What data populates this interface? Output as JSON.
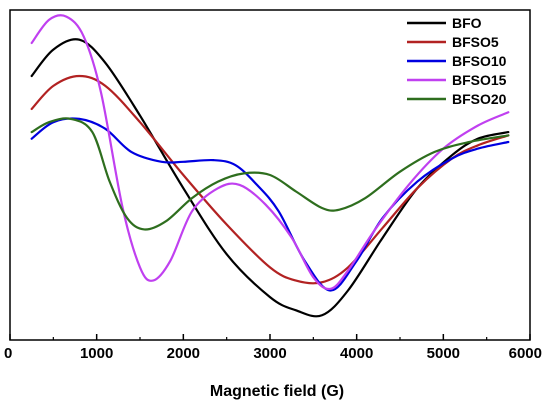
{
  "chart_data": {
    "type": "line",
    "title": "",
    "xlabel": "Magnetic field (G)",
    "ylabel": "",
    "xlim": [
      0,
      6000
    ],
    "xticks": [
      0,
      1000,
      2000,
      3000,
      4000,
      5000,
      6000
    ],
    "ylim": [
      0,
      100
    ],
    "legend_position": "top-right",
    "grid": false,
    "series": [
      {
        "name": "BFO",
        "color": "#000000",
        "points": [
          [
            250,
            80
          ],
          [
            500,
            88
          ],
          [
            800,
            91
          ],
          [
            1100,
            84
          ],
          [
            1500,
            68
          ],
          [
            2000,
            46
          ],
          [
            2500,
            26
          ],
          [
            3000,
            13
          ],
          [
            3300,
            9
          ],
          [
            3600,
            7.5
          ],
          [
            3900,
            15
          ],
          [
            4300,
            31
          ],
          [
            4700,
            46
          ],
          [
            5100,
            56
          ],
          [
            5400,
            61
          ],
          [
            5750,
            63
          ]
        ]
      },
      {
        "name": "BFSO5",
        "color": "#b22222",
        "points": [
          [
            250,
            70
          ],
          [
            500,
            77
          ],
          [
            800,
            80
          ],
          [
            1100,
            77
          ],
          [
            1500,
            66
          ],
          [
            2000,
            50
          ],
          [
            2500,
            35
          ],
          [
            3000,
            22
          ],
          [
            3300,
            18
          ],
          [
            3600,
            17.5
          ],
          [
            3900,
            22
          ],
          [
            4300,
            34
          ],
          [
            4700,
            46
          ],
          [
            5100,
            55
          ],
          [
            5400,
            59
          ],
          [
            5750,
            62
          ]
        ]
      },
      {
        "name": "BFSO10",
        "color": "#0000e0",
        "points": [
          [
            250,
            61
          ],
          [
            500,
            66
          ],
          [
            800,
            67
          ],
          [
            1100,
            64
          ],
          [
            1400,
            57
          ],
          [
            1750,
            54
          ],
          [
            2000,
            54
          ],
          [
            2350,
            54.5
          ],
          [
            2600,
            53
          ],
          [
            2850,
            47
          ],
          [
            3100,
            39
          ],
          [
            3400,
            24
          ],
          [
            3700,
            15
          ],
          [
            4000,
            24
          ],
          [
            4300,
            37
          ],
          [
            4700,
            48
          ],
          [
            5100,
            55
          ],
          [
            5400,
            58
          ],
          [
            5750,
            60
          ]
        ]
      },
      {
        "name": "BFSO15",
        "color": "#c040f0",
        "points": [
          [
            250,
            90
          ],
          [
            450,
            97
          ],
          [
            650,
            98
          ],
          [
            850,
            92
          ],
          [
            1050,
            75
          ],
          [
            1300,
            40
          ],
          [
            1500,
            22
          ],
          [
            1650,
            18
          ],
          [
            1850,
            24
          ],
          [
            2100,
            39
          ],
          [
            2400,
            46
          ],
          [
            2650,
            47
          ],
          [
            2950,
            41
          ],
          [
            3250,
            31
          ],
          [
            3500,
            19
          ],
          [
            3700,
            15.5
          ],
          [
            3900,
            21
          ],
          [
            4200,
            33
          ],
          [
            4600,
            47
          ],
          [
            5000,
            58
          ],
          [
            5400,
            65
          ],
          [
            5750,
            69
          ]
        ]
      },
      {
        "name": "BFSO20",
        "color": "#2e6e1e",
        "points": [
          [
            250,
            63
          ],
          [
            450,
            66
          ],
          [
            700,
            67
          ],
          [
            950,
            63
          ],
          [
            1150,
            48
          ],
          [
            1350,
            37
          ],
          [
            1550,
            33.5
          ],
          [
            1800,
            36
          ],
          [
            2100,
            43
          ],
          [
            2400,
            48
          ],
          [
            2700,
            50.5
          ],
          [
            3000,
            50
          ],
          [
            3300,
            45
          ],
          [
            3600,
            40
          ],
          [
            3800,
            39.5
          ],
          [
            4100,
            43
          ],
          [
            4500,
            51
          ],
          [
            4900,
            57
          ],
          [
            5300,
            60
          ],
          [
            5750,
            62
          ]
        ]
      }
    ]
  }
}
